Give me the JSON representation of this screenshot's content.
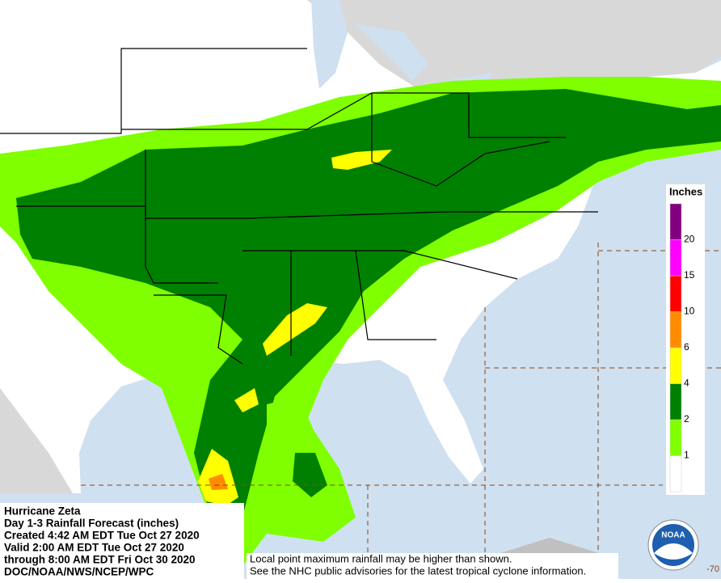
{
  "info": {
    "lines": [
      "Hurricane Zeta",
      "Day 1-3 Rainfall Forecast (inches)",
      "Created 4:42 AM EDT Tue Oct 27 2020",
      "Valid 2:00 AM EDT Tue Oct 27 2020",
      "through 8:00 AM EDT Fri Oct 30 2020",
      "DOC/NOAA/NWS/NCEP/WPC"
    ]
  },
  "disclaimer": {
    "lines": [
      "Local point maximum rainfall may be higher than shown.",
      "See the NHC public advisories for the latest tropical cyclone information."
    ]
  },
  "legend": {
    "title": "Inches",
    "labels": [
      "1",
      "2",
      "4",
      "6",
      "10",
      "15",
      "20"
    ],
    "colors": [
      "#ffffff",
      "#7fff00",
      "#008000",
      "#ffff00",
      "#ff8c00",
      "#ff0000",
      "#ff00ff",
      "#800080"
    ]
  },
  "logo": {
    "text": "NOAA"
  },
  "corner_label": "-70"
}
